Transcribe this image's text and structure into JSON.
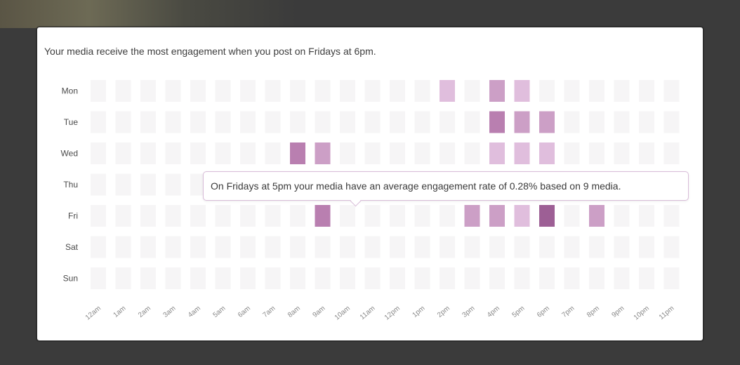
{
  "headline": "Your media receive the most engagement when you post on Fridays at 6pm.",
  "tooltip": {
    "text": "On Fridays at 5pm your media have an average engagement rate of 0.28% based on 9 media."
  },
  "colors": {
    "empty": "#f6f5f6",
    "low": "#e0bedd",
    "mid": "#cc9fc6",
    "high": "#b97fb0",
    "max": "#9d5f95",
    "tooltip_border": "#d8bcd8"
  },
  "chart_data": {
    "type": "heatmap",
    "title": "",
    "xlabel": "",
    "ylabel": "",
    "days": [
      "Mon",
      "Tue",
      "Wed",
      "Thu",
      "Fri",
      "Sat",
      "Sun"
    ],
    "hours": [
      "12am",
      "1am",
      "2am",
      "3am",
      "4am",
      "5am",
      "6am",
      "7am",
      "8am",
      "9am",
      "10am",
      "11am",
      "12pm",
      "1pm",
      "2pm",
      "3pm",
      "4pm",
      "5pm",
      "6pm",
      "7pm",
      "8pm",
      "9pm",
      "10pm",
      "11pm"
    ],
    "intensity_levels": [
      "empty",
      "low",
      "mid",
      "high",
      "max"
    ],
    "values": [
      [
        0,
        0,
        0,
        0,
        0,
        0,
        0,
        0,
        0,
        0,
        0,
        0,
        0,
        0,
        1,
        0,
        2,
        1,
        0,
        0,
        0,
        0,
        0,
        0
      ],
      [
        0,
        0,
        0,
        0,
        0,
        0,
        0,
        0,
        0,
        0,
        0,
        0,
        0,
        0,
        0,
        0,
        3,
        2,
        2,
        0,
        0,
        0,
        0,
        0
      ],
      [
        0,
        0,
        0,
        0,
        0,
        0,
        0,
        0,
        3,
        2,
        0,
        0,
        0,
        0,
        0,
        0,
        1,
        1,
        1,
        0,
        0,
        0,
        0,
        0
      ],
      [
        0,
        0,
        0,
        0,
        0,
        0,
        0,
        0,
        0,
        0,
        0,
        0,
        0,
        0,
        0,
        0,
        0,
        0,
        0,
        0,
        0,
        0,
        0,
        0
      ],
      [
        0,
        0,
        0,
        0,
        0,
        0,
        0,
        0,
        0,
        3,
        0,
        0,
        0,
        0,
        0,
        2,
        2,
        1,
        4,
        0,
        2,
        0,
        0,
        0
      ],
      [
        0,
        0,
        0,
        0,
        0,
        0,
        0,
        0,
        0,
        0,
        0,
        0,
        0,
        0,
        0,
        0,
        0,
        0,
        0,
        0,
        0,
        0,
        0,
        0
      ],
      [
        0,
        0,
        0,
        0,
        0,
        0,
        0,
        0,
        0,
        0,
        0,
        0,
        0,
        0,
        0,
        0,
        0,
        0,
        0,
        0,
        0,
        0,
        0,
        0
      ]
    ]
  }
}
